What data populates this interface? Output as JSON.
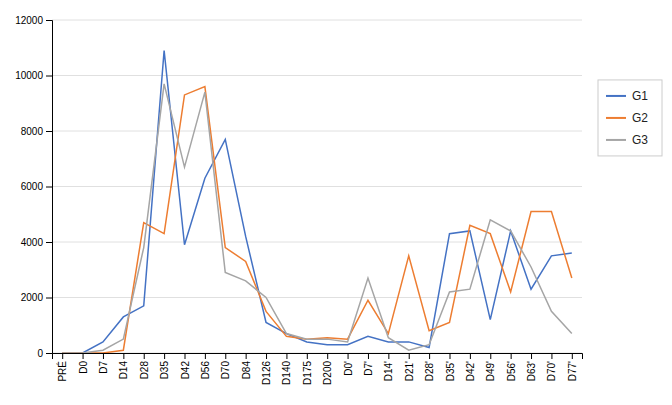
{
  "chart_data": {
    "type": "line",
    "categories": [
      "PRÉ",
      "D0",
      "D7",
      "D14",
      "D28",
      "D35",
      "D42",
      "D56",
      "D70",
      "D84",
      "D126",
      "D140",
      "D175",
      "D200",
      "D0'",
      "D7'",
      "D14'",
      "D21'",
      "D28'",
      "D35'",
      "D42'",
      "D49'",
      "D56'",
      "D63'",
      "D70'",
      "D77'"
    ],
    "series": [
      {
        "name": "G1",
        "color": "#4472C4",
        "values": [
          0,
          0,
          400,
          1300,
          1700,
          10900,
          3900,
          6300,
          7700,
          4200,
          1100,
          700,
          400,
          300,
          300,
          600,
          400,
          400,
          200,
          4300,
          4400,
          1200,
          4400,
          2300,
          3500,
          3600
        ]
      },
      {
        "name": "G2",
        "color": "#ED7D31",
        "values": [
          0,
          0,
          0,
          100,
          4700,
          4300,
          9300,
          9600,
          3800,
          3300,
          1500,
          600,
          500,
          550,
          500,
          1900,
          700,
          3500,
          800,
          1100,
          4600,
          4300,
          2200,
          5100,
          5100,
          2700
        ]
      },
      {
        "name": "G3",
        "color": "#A5A5A5",
        "values": [
          0,
          0,
          100,
          500,
          3800,
          9700,
          6700,
          9400,
          2900,
          2600,
          2000,
          700,
          500,
          500,
          400,
          2700,
          550,
          100,
          300,
          2200,
          2300,
          4800,
          4400,
          3100,
          1500,
          700
        ]
      }
    ],
    "ylim": [
      0,
      12000
    ],
    "yticks": [
      0,
      2000,
      4000,
      6000,
      8000,
      10000,
      12000
    ],
    "grid": true,
    "legend": "right"
  }
}
